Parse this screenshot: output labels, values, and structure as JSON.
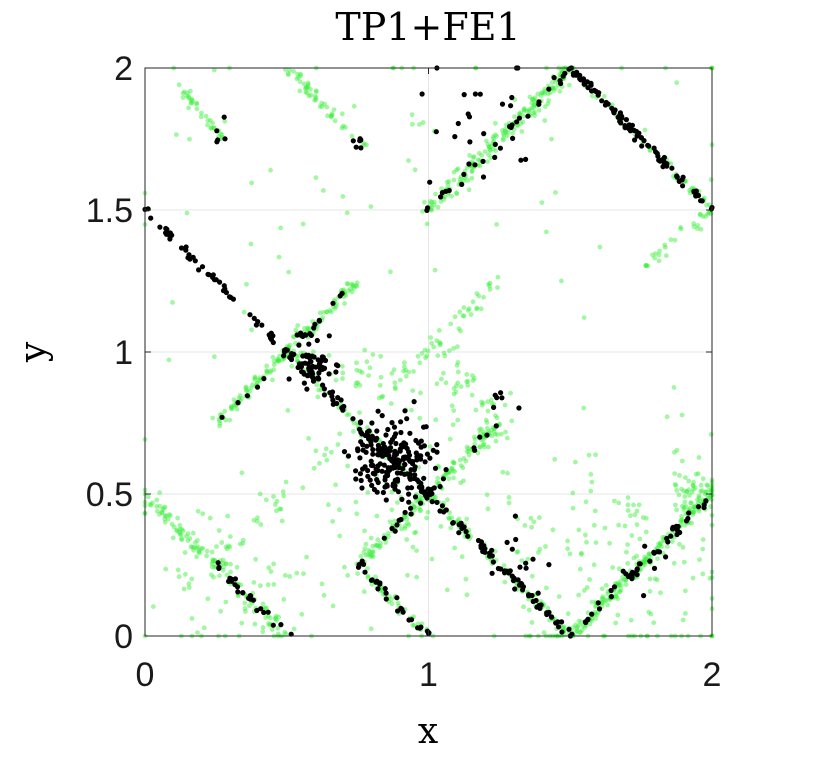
{
  "chart_data": {
    "type": "scatter",
    "title": "TP1+FE1",
    "xlabel": "x",
    "ylabel": "y",
    "xlim": [
      0,
      2
    ],
    "ylim": [
      0,
      2
    ],
    "xticks": [
      0,
      1,
      2
    ],
    "xtick_labels": [
      "0",
      "1",
      "2"
    ],
    "yticks": [
      0,
      0.5,
      1,
      1.5,
      2
    ],
    "ytick_labels": [
      "0",
      "0.5",
      "1",
      "1.5",
      "2"
    ],
    "grid": true,
    "legend": "none",
    "colors": {
      "green": "#33ee33",
      "black": "#000000"
    },
    "series": [
      {
        "color_key": "green",
        "opacity": 0.45,
        "segments": [
          {
            "from": [
              0.0,
              0.5
            ],
            "to": [
              0.25,
              0.25
            ],
            "count": 60,
            "jitter": 0.012
          },
          {
            "from": [
              0.25,
              0.25
            ],
            "to": [
              0.5,
              0.0
            ],
            "count": 50,
            "jitter": 0.012
          },
          {
            "from": [
              0.25,
              0.25
            ],
            "to": [
              1.25,
              1.25
            ],
            "count": 80,
            "jitter": 0.015
          },
          {
            "from": [
              0.25,
              0.75
            ],
            "to": [
              0.75,
              1.25
            ],
            "count": 140,
            "jitter": 0.01
          },
          {
            "from": [
              0.5,
              1.0
            ],
            "to": [
              1.5,
              0.0
            ],
            "count": 160,
            "jitter": 0.008
          },
          {
            "from": [
              0.75,
              0.25
            ],
            "to": [
              1.25,
              0.75
            ],
            "count": 140,
            "jitter": 0.012
          },
          {
            "from": [
              0.75,
              0.25
            ],
            "to": [
              1.0,
              0.0
            ],
            "count": 40,
            "jitter": 0.01
          },
          {
            "from": [
              1.5,
              0.0
            ],
            "to": [
              2.0,
              0.5
            ],
            "count": 170,
            "jitter": 0.012
          },
          {
            "from": [
              1.0,
              1.5
            ],
            "to": [
              1.5,
              2.0
            ],
            "count": 190,
            "jitter": 0.015
          },
          {
            "from": [
              1.5,
              2.0
            ],
            "to": [
              2.0,
              1.5
            ],
            "count": 60,
            "jitter": 0.008
          },
          {
            "from": [
              0.5,
              2.0
            ],
            "to": [
              0.78,
              1.72
            ],
            "count": 50,
            "jitter": 0.01
          },
          {
            "from": [
              0.1,
              1.95
            ],
            "to": [
              0.28,
              1.75
            ],
            "count": 35,
            "jitter": 0.01
          },
          {
            "from": [
              1.75,
              1.3
            ],
            "to": [
              2.0,
              1.5
            ],
            "count": 30,
            "jitter": 0.01
          },
          {
            "from": [
              0.5,
              1.0
            ],
            "to": [
              1.25,
              0.75
            ],
            "count": 70,
            "jitter": 0.05
          },
          {
            "from": [
              1.0,
              1.05
            ],
            "to": [
              1.25,
              0.78
            ],
            "count": 40,
            "jitter": 0.03
          }
        ],
        "clusters": [
          {
            "center": [
              1.65,
              0.25
            ],
            "spread": 0.22,
            "count": 170
          },
          {
            "center": [
              1.95,
              0.5
            ],
            "spread": 0.05,
            "count": 60
          },
          {
            "center": [
              0.3,
              0.2
            ],
            "spread": 0.2,
            "count": 90
          },
          {
            "center": [
              0.95,
              0.45
            ],
            "spread": 0.18,
            "count": 80
          },
          {
            "center": [
              1.05,
              1.75
            ],
            "spread": 0.5,
            "count": 40
          },
          {
            "center": [
              0.55,
              1.45
            ],
            "spread": 0.35,
            "count": 30
          }
        ]
      },
      {
        "color_key": "black",
        "opacity": 1,
        "segments": [
          {
            "from": [
              0.0,
              1.5
            ],
            "to": [
              0.5,
              1.0
            ],
            "count": 50,
            "jitter": 0.006
          },
          {
            "from": [
              0.5,
              1.0
            ],
            "to": [
              1.5,
              0.0
            ],
            "count": 130,
            "jitter": 0.008
          },
          {
            "from": [
              0.25,
              0.25
            ],
            "to": [
              0.5,
              0.0
            ],
            "count": 25,
            "jitter": 0.008
          },
          {
            "from": [
              0.75,
              0.25
            ],
            "to": [
              1.0,
              0.0
            ],
            "count": 25,
            "jitter": 0.008
          },
          {
            "from": [
              1.5,
              0.0
            ],
            "to": [
              2.0,
              0.5
            ],
            "count": 40,
            "jitter": 0.006
          },
          {
            "from": [
              1.5,
              2.0
            ],
            "to": [
              2.0,
              1.5
            ],
            "count": 90,
            "jitter": 0.008
          },
          {
            "from": [
              1.0,
              1.5
            ],
            "to": [
              1.5,
              2.0
            ],
            "count": 25,
            "jitter": 0.008
          },
          {
            "from": [
              0.75,
              0.25
            ],
            "to": [
              1.25,
              0.75
            ],
            "count": 25,
            "jitter": 0.008
          },
          {
            "from": [
              0.25,
              0.75
            ],
            "to": [
              0.75,
              1.25
            ],
            "count": 20,
            "jitter": 0.008
          }
        ],
        "clusters": [
          {
            "center": [
              0.87,
              0.63
            ],
            "spread": 0.07,
            "count": 180
          },
          {
            "center": [
              0.6,
              0.95
            ],
            "spread": 0.04,
            "count": 60
          },
          {
            "center": [
              1.2,
              1.85
            ],
            "spread": 0.12,
            "count": 25
          },
          {
            "center": [
              1.35,
              0.25
            ],
            "spread": 0.06,
            "count": 15
          },
          {
            "center": [
              0.27,
              1.77
            ],
            "spread": 0.03,
            "count": 5
          },
          {
            "center": [
              0.75,
              1.75
            ],
            "spread": 0.03,
            "count": 6
          },
          {
            "center": [
              1.75,
              0.25
            ],
            "spread": 0.06,
            "count": 10
          },
          {
            "center": [
              1.25,
              0.85
            ],
            "spread": 0.04,
            "count": 6
          }
        ]
      }
    ]
  }
}
